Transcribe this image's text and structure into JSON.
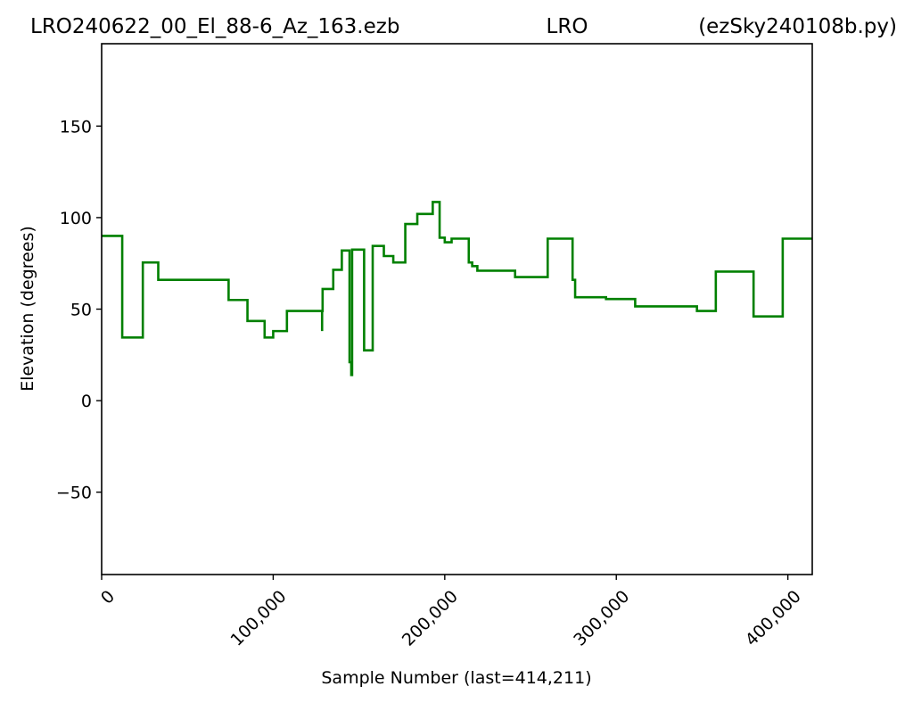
{
  "chart_data": {
    "type": "line",
    "title_left": "LRO240622_00_El_88-6_Az_163.ezb",
    "title_center": "LRO",
    "title_right": "(ezSky240108b.py)",
    "xlabel": "Sample Number (last=414,211)",
    "ylabel": "Elevation (degrees)",
    "xlim": [
      0,
      414211
    ],
    "ylim": [
      -95,
      195
    ],
    "x_ticks": [
      0,
      100000,
      200000,
      300000,
      400000
    ],
    "x_tick_labels": [
      "0",
      "100,000",
      "200,000",
      "300,000",
      "400,000"
    ],
    "y_ticks": [
      -50,
      0,
      50,
      100,
      150
    ],
    "y_tick_labels": [
      "−50",
      "0",
      "50",
      "100",
      "150"
    ],
    "grid": false,
    "line_color": "#008000",
    "series": [
      {
        "step": "post",
        "x": [
          0,
          12000,
          24000,
          33000,
          74000,
          85000,
          95000,
          100000,
          108000,
          128500,
          128500,
          128800,
          135000,
          140000,
          144500,
          144500,
          145000,
          145500,
          145500,
          146000,
          146000,
          146200,
          146400,
          146400,
          153000,
          158000,
          164500,
          170000,
          177000,
          184000,
          193000,
          197000,
          200000,
          204000,
          214000,
          216000,
          219000,
          241000,
          260000,
          274500,
          276000,
          294000,
          311000,
          347000,
          358000,
          380000,
          397000,
          414211
        ],
        "y": [
          90,
          34.5,
          75.5,
          66,
          55,
          43.5,
          34.5,
          38,
          49,
          38,
          49,
          61,
          71.5,
          82,
          82,
          21,
          21,
          21,
          14,
          14,
          82.5,
          82.5,
          82.5,
          82.5,
          27.5,
          84.5,
          79,
          75.5,
          96.5,
          102,
          108.5,
          89,
          86.5,
          88.5,
          75.5,
          73.5,
          71,
          67.5,
          88.5,
          66,
          56.5,
          55.5,
          51.5,
          49,
          70.5,
          46,
          88.5,
          88.5
        ]
      }
    ]
  }
}
